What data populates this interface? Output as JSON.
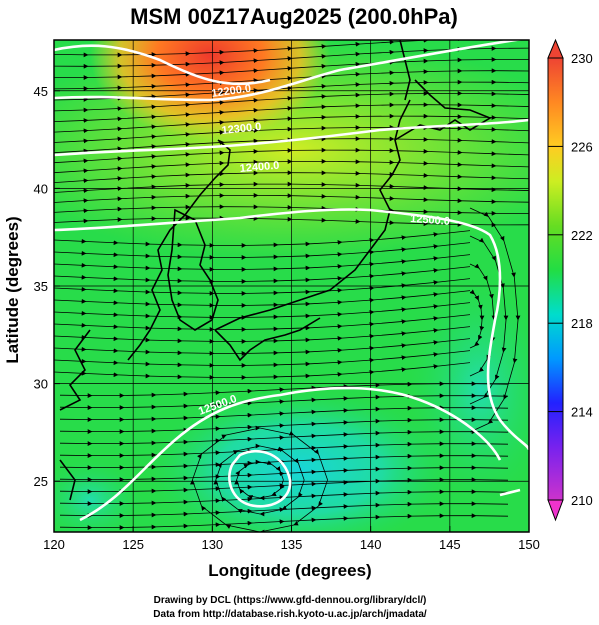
{
  "title": "MSM 00Z17Aug2025 (200.0hPa)",
  "xlabel": "Longitude (degrees)",
  "ylabel": "Latitude  (degrees)",
  "credits": {
    "line1": "Drawing by DCL (https://www.gfd-dennou.org/library/dcl/)",
    "line2": "Data from http://database.rish.kyoto-u.ac.jp/arch/jmadata/"
  },
  "map": {
    "lon_range": [
      120,
      150
    ],
    "lat_range": [
      22.4,
      47.6
    ],
    "lon_ticks": [
      "120",
      "125",
      "130",
      "135",
      "140",
      "145",
      "150"
    ],
    "lat_ticks": [
      "25",
      "30",
      "35",
      "40",
      "45"
    ],
    "grid_lon": [
      125,
      130,
      135,
      140,
      145
    ],
    "grid_lat": [
      25,
      30,
      35,
      40,
      45
    ]
  },
  "colorbar": {
    "min": 210,
    "max": 230,
    "tick_labels": [
      "230",
      "226",
      "222",
      "218",
      "214",
      "210"
    ],
    "colors": [
      "#cc33cc",
      "#2222ff",
      "#00aaff",
      "#00ddcc",
      "#22dd44",
      "#66dd22",
      "#ccee22",
      "#ffcc22",
      "#ff8822",
      "#ee4433"
    ]
  },
  "contours": [
    {
      "label": "12200.0"
    },
    {
      "label": "12300.0"
    },
    {
      "label": "12400.0"
    },
    {
      "label": "12500.0"
    },
    {
      "label": "12500.0"
    }
  ],
  "colors": {
    "contour": "#ffffff",
    "streamline": "#000000"
  }
}
